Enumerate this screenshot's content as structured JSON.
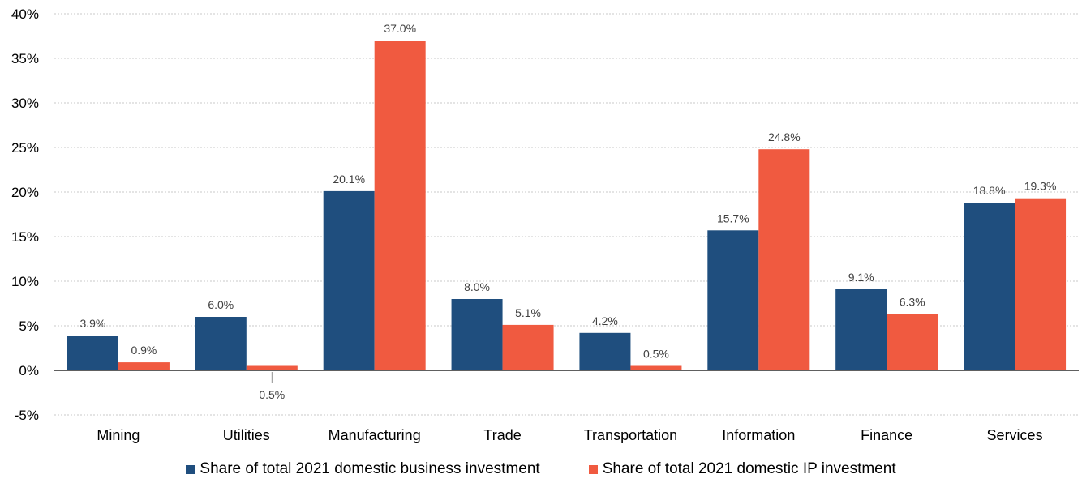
{
  "chart_data": {
    "type": "bar",
    "categories": [
      "Mining",
      "Utilities",
      "Manufacturing",
      "Trade",
      "Transportation",
      "Information",
      "Finance",
      "Services"
    ],
    "series": [
      {
        "name": "Share of total 2021 domestic business investment",
        "values": [
          3.9,
          6.0,
          20.1,
          8.0,
          4.2,
          15.7,
          9.1,
          18.8
        ],
        "labels": [
          "3.9%",
          "6.0%",
          "20.1%",
          "8.0%",
          "4.2%",
          "15.7%",
          "9.1%",
          "18.8%"
        ],
        "color": "#1f4e7e"
      },
      {
        "name": "Share of total 2021 domestic IP investment",
        "values": [
          0.9,
          0.5,
          37.0,
          5.1,
          0.5,
          24.8,
          6.3,
          19.3
        ],
        "labels": [
          "0.9%",
          "0.5%",
          "37.0%",
          "5.1%",
          "0.5%",
          "24.8%",
          "6.3%",
          "19.3%"
        ],
        "color": "#f05a40"
      }
    ],
    "ylim": [
      -5,
      40
    ],
    "yticks": [
      "-5%",
      "0%",
      "5%",
      "10%",
      "15%",
      "20%",
      "25%",
      "30%",
      "35%",
      "40%"
    ],
    "ytick_values": [
      -5,
      0,
      5,
      10,
      15,
      20,
      25,
      30,
      35,
      40
    ],
    "grid": true,
    "legend_position": "bottom"
  }
}
